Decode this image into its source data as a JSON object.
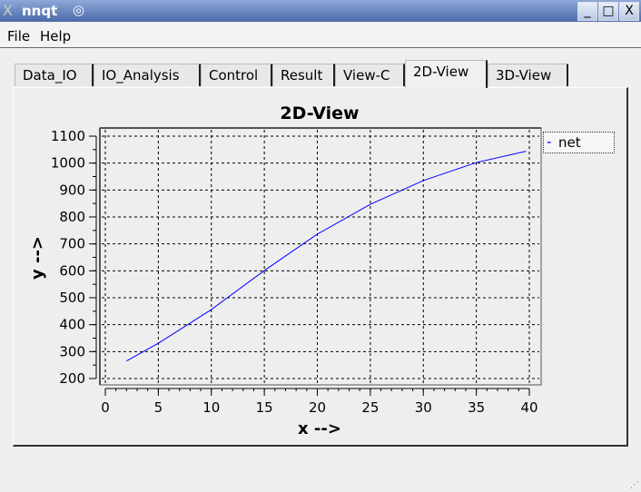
{
  "window": {
    "title": "nnqt",
    "buttons": [
      "_",
      "□",
      "X"
    ]
  },
  "menubar": {
    "items": [
      "File",
      "Help"
    ]
  },
  "tabs": [
    "Data_IO",
    "IO_Analysis",
    "Control",
    "Result",
    "View-C",
    "2D-View",
    "3D-View"
  ],
  "active_tab": "2D-View",
  "chart_data": {
    "type": "line",
    "title": "2D-View",
    "xlabel": "x -->",
    "ylabel": "y -->",
    "xlim": [
      0,
      40
    ],
    "ylim": [
      200,
      1100
    ],
    "xticks": [
      0,
      5,
      10,
      15,
      20,
      25,
      30,
      35,
      40
    ],
    "yticks": [
      200,
      300,
      400,
      500,
      600,
      700,
      800,
      900,
      1000,
      1100
    ],
    "grid": true,
    "legend_position": "right",
    "series": [
      {
        "name": "net",
        "color": "#0000ff",
        "x": [
          2,
          5,
          10,
          15,
          20,
          25,
          30,
          35,
          39.7
        ],
        "y": [
          265,
          331,
          456,
          601,
          736,
          847,
          935,
          1002,
          1044
        ]
      }
    ]
  }
}
